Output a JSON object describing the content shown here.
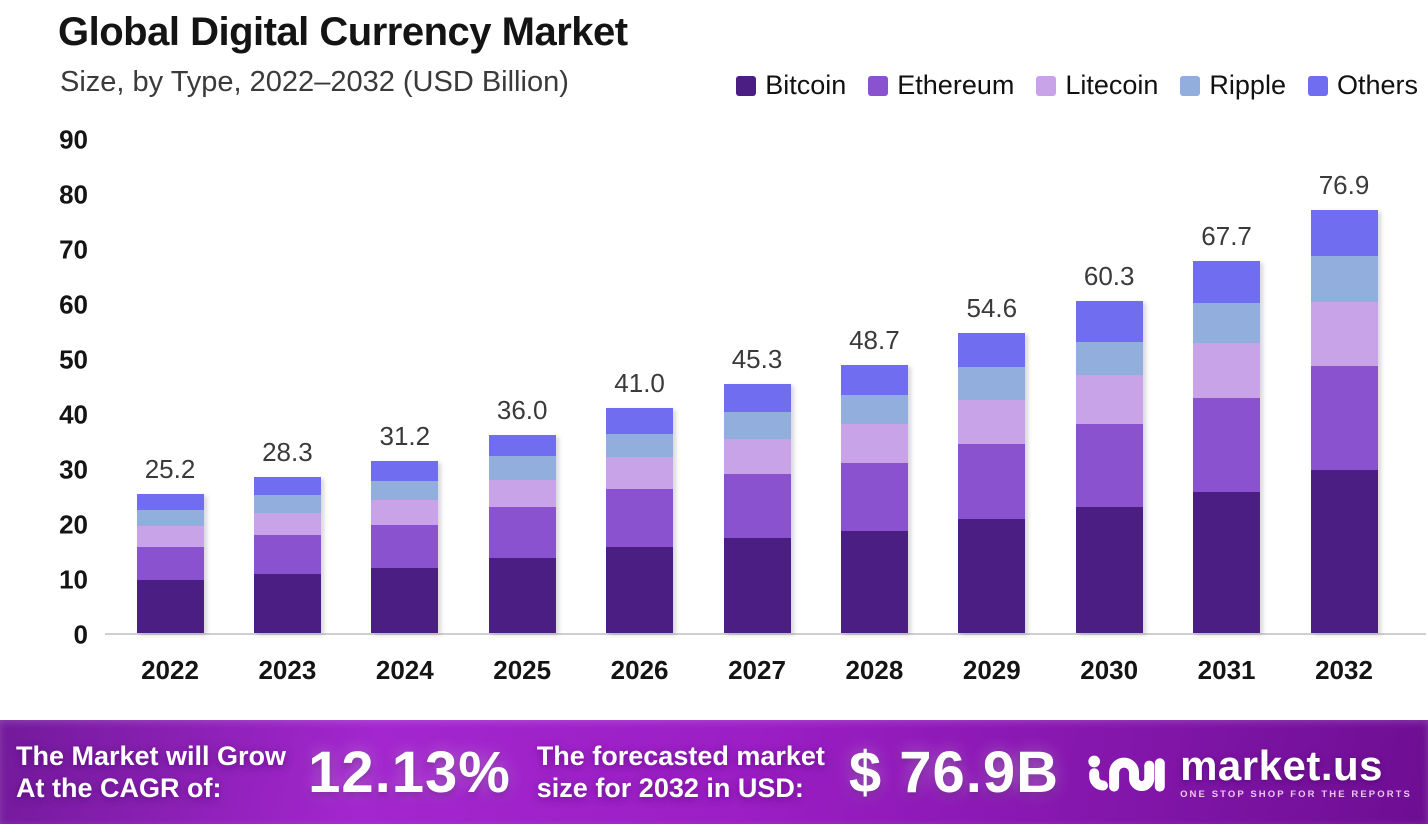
{
  "header": {
    "title": "Global Digital Currency Market",
    "subtitle": "Size, by Type, 2022–2032 (USD Billion)"
  },
  "chart_data": {
    "type": "bar",
    "stacked": true,
    "title": "Global Digital Currency Market",
    "subtitle": "Size, by Type, 2022–2032 (USD Billion)",
    "xlabel": "",
    "ylabel": "USD Billion",
    "ylim": [
      0,
      90
    ],
    "yticks": [
      0,
      10,
      20,
      30,
      40,
      50,
      60,
      70,
      80,
      90
    ],
    "grid": false,
    "legend_position": "top-right",
    "categories": [
      "2022",
      "2023",
      "2024",
      "2025",
      "2026",
      "2027",
      "2028",
      "2029",
      "2030",
      "2031",
      "2032"
    ],
    "series": [
      {
        "name": "Bitcoin",
        "color": "#4a1e82",
        "values": [
          9.7,
          10.8,
          11.8,
          13.6,
          15.6,
          17.3,
          18.6,
          20.8,
          22.9,
          25.6,
          29.6
        ]
      },
      {
        "name": "Ethereum",
        "color": "#8a52cf",
        "values": [
          5.9,
          7.0,
          7.9,
          9.3,
          10.5,
          11.6,
          12.3,
          13.6,
          15.1,
          17.1,
          18.9
        ]
      },
      {
        "name": "Litecoin",
        "color": "#c9a3e8",
        "values": [
          3.8,
          4.0,
          4.4,
          5.0,
          5.9,
          6.4,
          7.1,
          8.0,
          9.0,
          10.1,
          11.7
        ]
      },
      {
        "name": "Ripple",
        "color": "#92aedd",
        "values": [
          3.0,
          3.3,
          3.5,
          4.2,
          4.1,
          4.9,
          5.3,
          5.9,
          6.0,
          7.2,
          8.3
        ]
      },
      {
        "name": "Others",
        "color": "#716df0",
        "values": [
          2.8,
          3.2,
          3.6,
          3.9,
          4.9,
          5.1,
          5.4,
          6.3,
          7.3,
          7.7,
          8.4
        ]
      }
    ],
    "totals": [
      "25.2",
      "28.3",
      "31.2",
      "36.0",
      "41.0",
      "45.3",
      "48.7",
      "54.6",
      "60.3",
      "67.7",
      "76.9"
    ]
  },
  "banner": {
    "cagr_label_line1": "The Market will Grow",
    "cagr_label_line2": "At the CAGR of:",
    "cagr_value": "12.13%",
    "forecast_label_line1": "The forecasted market",
    "forecast_label_line2": "size for 2032 in USD:",
    "forecast_value": "$ 76.9B",
    "brand_name": "market.us",
    "brand_tagline": "ONE STOP SHOP FOR THE REPORTS"
  }
}
